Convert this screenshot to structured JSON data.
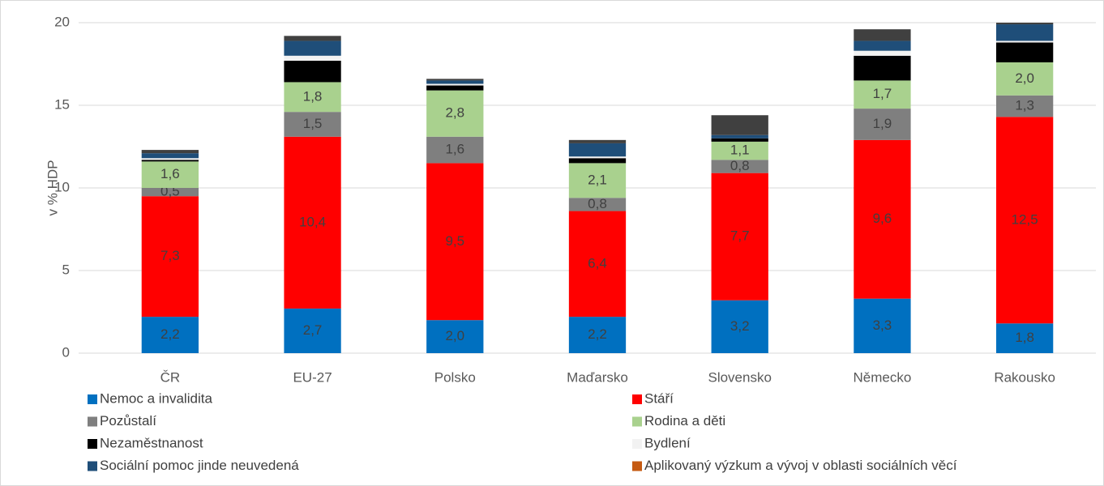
{
  "chart_data": {
    "type": "stacked_bar",
    "y_axis_label": "v % HDP",
    "categories": [
      "ČR",
      "EU-27",
      "Polsko",
      "Maďarsko",
      "Slovensko",
      "Německo",
      "Rakousko"
    ],
    "ylim": [
      0,
      20
    ],
    "yticks": [
      0,
      5,
      10,
      15,
      20
    ],
    "grid": true,
    "series": [
      {
        "name": "Nemoc a invalidita",
        "color": "#0070C0",
        "values": [
          2.2,
          2.7,
          2.0,
          2.2,
          3.2,
          3.3,
          1.8
        ],
        "value_labels": [
          "2,2",
          "2,7",
          "2,0",
          "2,2",
          "3,2",
          "3,3",
          "1,8"
        ]
      },
      {
        "name": "Stáří",
        "color": "#FF0000",
        "values": [
          7.3,
          10.4,
          9.5,
          6.4,
          7.7,
          9.6,
          12.5
        ],
        "value_labels": [
          "7,3",
          "10,4",
          "9,5",
          "6,4",
          "7,7",
          "9,6",
          "12,5"
        ]
      },
      {
        "name": "Pozůstalí",
        "color": "#7F7F7F",
        "values": [
          0.5,
          1.5,
          1.6,
          0.8,
          0.8,
          1.9,
          1.3
        ],
        "value_labels": [
          "0,5",
          "1,5",
          "1,6",
          "0,8",
          "0,8",
          "1,9",
          "1,3"
        ]
      },
      {
        "name": "Rodina a děti",
        "color": "#A9D18E",
        "values": [
          1.6,
          1.8,
          2.8,
          2.1,
          1.1,
          1.7,
          2.0
        ],
        "value_labels": [
          "1,6",
          "1,8",
          "2,8",
          "2,1",
          "1,1",
          "1,7",
          "2,0"
        ]
      },
      {
        "name": "Nezaměstnanost",
        "color": "#000000",
        "values": [
          0.1,
          1.3,
          0.3,
          0.3,
          0.2,
          1.5,
          1.2
        ]
      },
      {
        "name": "Bydlení",
        "color": "#F2F2F2",
        "values": [
          0.1,
          0.3,
          0.1,
          0.1,
          0.0,
          0.3,
          0.1
        ]
      },
      {
        "name": "Sociální pomoc jinde neuvedená",
        "color": "#1F4E79",
        "values": [
          0.3,
          0.9,
          0.2,
          0.8,
          0.2,
          0.6,
          1.0
        ]
      },
      {
        "name": "Aplikovaný výzkum a vývoj v oblasti sociálních věcí",
        "color": "#C55A11",
        "values": [
          0.0,
          0.0,
          0.0,
          0.0,
          0.0,
          0.0,
          0.0
        ]
      },
      {
        "color": "#404040",
        "values": [
          0.2,
          0.3,
          0.1,
          0.2,
          1.2,
          0.7,
          0.1
        ]
      }
    ]
  }
}
